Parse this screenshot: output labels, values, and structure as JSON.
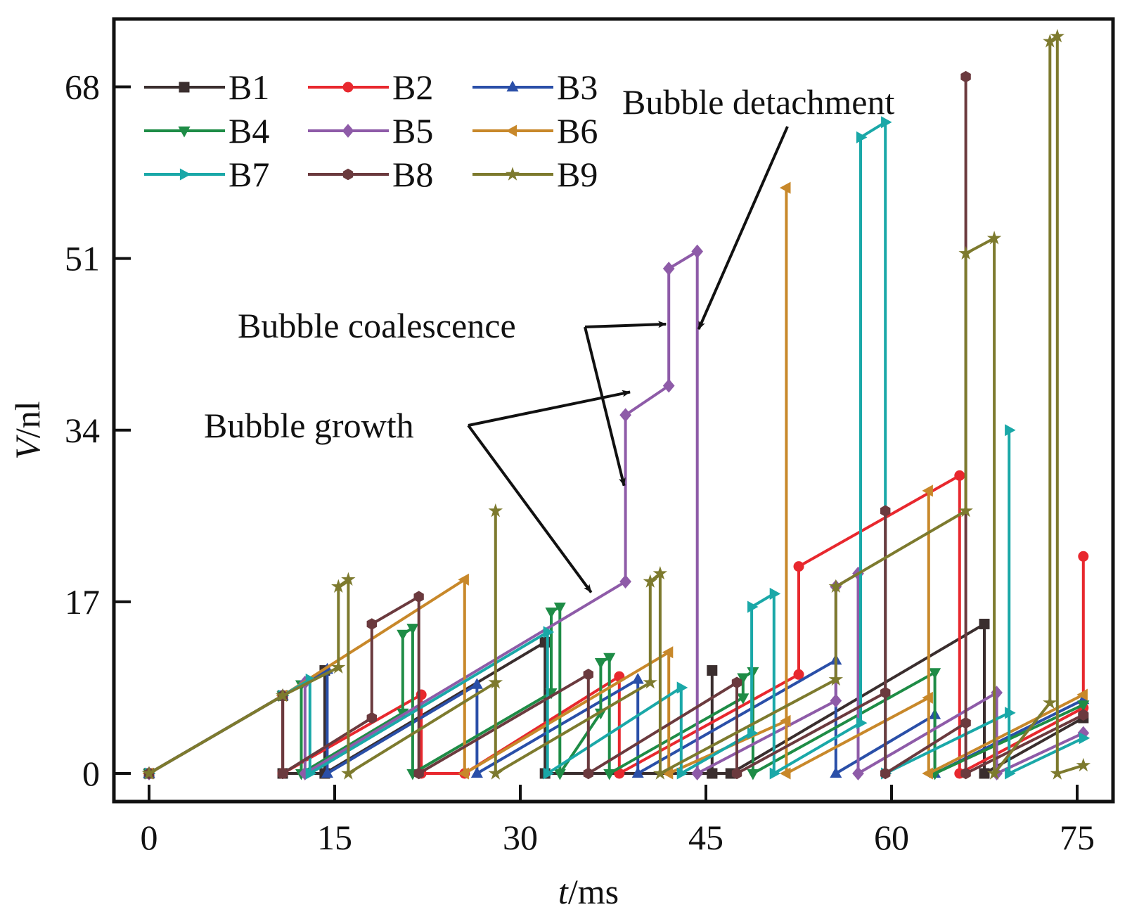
{
  "chart_data": {
    "type": "line",
    "title": "",
    "xlabel": "t/ms",
    "xlabel_italic": "t",
    "xlabel_unit": "/ms",
    "ylabel": "V/nl",
    "ylabel_italic": "V",
    "ylabel_unit": "/nl",
    "xlim": [
      -2.7,
      77.5
    ],
    "ylim": [
      -2.8,
      74.7
    ],
    "xticks": [
      0,
      15,
      30,
      45,
      60,
      75
    ],
    "yticks": [
      0,
      17,
      34,
      51,
      68
    ],
    "xtick_labels": [
      "0",
      "15",
      "30",
      "45",
      "60",
      "75"
    ],
    "ytick_labels": [
      "0",
      "17",
      "34",
      "51",
      "68"
    ],
    "grid": false,
    "legend_placement": "top-left",
    "legend_columns": 3,
    "series": [
      {
        "name": "B1",
        "color": "#3a2e2e",
        "marker": "square",
        "points": [
          [
            0,
            0
          ],
          [
            10.8,
            7.7
          ],
          [
            10.8,
            0
          ],
          [
            14.2,
            0
          ],
          [
            14.2,
            10.2
          ],
          [
            14.2,
            0
          ],
          [
            32,
            13
          ],
          [
            32,
            0
          ],
          [
            45.5,
            0
          ],
          [
            45.5,
            10.2
          ],
          [
            45.5,
            0
          ],
          [
            47,
            0
          ],
          [
            67.5,
            14.8
          ],
          [
            67.5,
            0
          ],
          [
            75.5,
            5.5
          ]
        ]
      },
      {
        "name": "B2",
        "color": "#e8282e",
        "marker": "circle",
        "points": [
          [
            0,
            0
          ],
          [
            10.8,
            7.7
          ],
          [
            10.8,
            0
          ],
          [
            22,
            7.8
          ],
          [
            22,
            0
          ],
          [
            25.5,
            0
          ],
          [
            38,
            9.6
          ],
          [
            38,
            0
          ],
          [
            52.5,
            9.8
          ],
          [
            52.5,
            20.5
          ],
          [
            65.5,
            29.5
          ],
          [
            65.5,
            0
          ],
          [
            75.5,
            6.5
          ],
          [
            75.5,
            21.5
          ]
        ]
      },
      {
        "name": "B3",
        "color": "#2a4fa8",
        "marker": "triangle-up",
        "points": [
          [
            0,
            0
          ],
          [
            10.8,
            7.7
          ],
          [
            14.4,
            10.3
          ],
          [
            14.4,
            0
          ],
          [
            26.5,
            8.8
          ],
          [
            26.5,
            0
          ],
          [
            39.5,
            9.3
          ],
          [
            39.5,
            0
          ],
          [
            55.5,
            11.2
          ],
          [
            55.5,
            0
          ],
          [
            63.5,
            5.8
          ],
          [
            63.5,
            0
          ],
          [
            75.5,
            7.3
          ]
        ]
      },
      {
        "name": "B4",
        "color": "#1e8c46",
        "marker": "triangle-down",
        "points": [
          [
            0,
            0
          ],
          [
            10.8,
            7.7
          ],
          [
            12.3,
            8.8
          ],
          [
            12.3,
            0
          ],
          [
            20.5,
            6
          ],
          [
            20.5,
            13.8
          ],
          [
            21.3,
            14.4
          ],
          [
            21.3,
            0
          ],
          [
            32.5,
            8
          ],
          [
            32.5,
            16
          ],
          [
            33.2,
            16.5
          ],
          [
            33.2,
            0
          ],
          [
            36.5,
            6
          ],
          [
            36.5,
            11
          ],
          [
            37.2,
            11.5
          ],
          [
            37.2,
            0
          ],
          [
            48,
            7.5
          ],
          [
            48,
            9.5
          ],
          [
            48.8,
            10.1
          ],
          [
            48.8,
            0
          ],
          [
            63.5,
            10
          ],
          [
            63.5,
            0
          ],
          [
            75.5,
            6.8
          ]
        ]
      },
      {
        "name": "B5",
        "color": "#8e5ba8",
        "marker": "diamond",
        "points": [
          [
            0,
            0
          ],
          [
            10.8,
            7.7
          ],
          [
            12.6,
            9
          ],
          [
            12.6,
            0
          ],
          [
            38.5,
            19
          ],
          [
            38.5,
            35.5
          ],
          [
            42,
            38.4
          ],
          [
            42,
            50
          ],
          [
            44.3,
            51.7
          ],
          [
            44.3,
            0
          ],
          [
            55.5,
            7.2
          ],
          [
            55.5,
            18.5
          ],
          [
            57.3,
            19.8
          ],
          [
            57.3,
            0
          ],
          [
            68.5,
            8
          ],
          [
            68.5,
            0
          ],
          [
            75.5,
            4
          ]
        ]
      },
      {
        "name": "B6",
        "color": "#c8882a",
        "marker": "triangle-left",
        "points": [
          [
            0,
            0
          ],
          [
            10.8,
            7.7
          ],
          [
            25.5,
            19.2
          ],
          [
            25.5,
            0
          ],
          [
            42,
            12
          ],
          [
            42,
            0
          ],
          [
            51.5,
            5.2
          ],
          [
            51.5,
            58
          ],
          [
            51.5,
            0
          ],
          [
            63,
            7.5
          ],
          [
            63,
            28
          ],
          [
            63,
            0
          ],
          [
            75.5,
            7.8
          ]
        ]
      },
      {
        "name": "B7",
        "color": "#1aa8a8",
        "marker": "triangle-right",
        "points": [
          [
            0,
            0
          ],
          [
            10.8,
            7.7
          ],
          [
            13,
            9.3
          ],
          [
            13,
            0
          ],
          [
            32.2,
            14
          ],
          [
            32.2,
            0
          ],
          [
            43,
            8.5
          ],
          [
            43,
            0
          ],
          [
            48.7,
            4
          ],
          [
            48.7,
            16.5
          ],
          [
            50.5,
            17.8
          ],
          [
            50.5,
            0
          ],
          [
            57.5,
            5
          ],
          [
            57.5,
            63
          ],
          [
            59.5,
            64.5
          ],
          [
            59.5,
            0
          ],
          [
            69.5,
            6
          ],
          [
            69.5,
            34
          ],
          [
            69.5,
            0
          ],
          [
            75.5,
            3.5
          ]
        ]
      },
      {
        "name": "B8",
        "color": "#6b3a3e",
        "marker": "hexagon",
        "points": [
          [
            0,
            0
          ],
          [
            10.8,
            7.7
          ],
          [
            10.8,
            0
          ],
          [
            18,
            5.5
          ],
          [
            18,
            14.8
          ],
          [
            21.8,
            17.5
          ],
          [
            21.8,
            0
          ],
          [
            35.5,
            9.8
          ],
          [
            35.5,
            0
          ],
          [
            47.5,
            9
          ],
          [
            47.5,
            0
          ],
          [
            59.5,
            8
          ],
          [
            59.5,
            26
          ],
          [
            59.5,
            0
          ],
          [
            66,
            5
          ],
          [
            66,
            69
          ],
          [
            66,
            0
          ],
          [
            75.5,
            5.8
          ]
        ]
      },
      {
        "name": "B9",
        "color": "#7d7a2e",
        "marker": "star",
        "points": [
          [
            0,
            0
          ],
          [
            10.8,
            7.7
          ],
          [
            15.3,
            10.5
          ],
          [
            15.3,
            18.5
          ],
          [
            16.1,
            19.2
          ],
          [
            16.1,
            0
          ],
          [
            28,
            9
          ],
          [
            28,
            26
          ],
          [
            28,
            0
          ],
          [
            40.5,
            9
          ],
          [
            40.5,
            19
          ],
          [
            41.3,
            19.8
          ],
          [
            41.3,
            0
          ],
          [
            55.5,
            9.3
          ],
          [
            55.5,
            18.5
          ],
          [
            66,
            26
          ],
          [
            66,
            51.5
          ],
          [
            68.3,
            53
          ],
          [
            68.3,
            0
          ],
          [
            72.8,
            7
          ],
          [
            72.8,
            72.5
          ],
          [
            73.4,
            73
          ],
          [
            73.4,
            0
          ],
          [
            75.5,
            0.8
          ]
        ]
      }
    ],
    "annotations": [
      {
        "text": "Bubble detachment",
        "target_series": "B5",
        "target": [
          44.3,
          44
        ]
      },
      {
        "text": "Bubble coalescence",
        "target_series": "B5",
        "targets": [
          [
            42,
            44.5
          ],
          [
            38.5,
            28.5
          ]
        ]
      },
      {
        "text": "Bubble growth",
        "target_series": "B5",
        "targets": [
          [
            38.3,
            37.5
          ],
          [
            35.5,
            17.8
          ]
        ]
      }
    ]
  }
}
